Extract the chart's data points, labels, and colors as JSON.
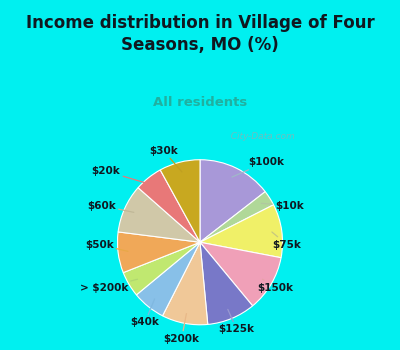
{
  "title": "Income distribution in Village of Four\nSeasons, MO (%)",
  "subtitle": "All residents",
  "labels": [
    "$100k",
    "$10k",
    "$75k",
    "$150k",
    "$125k",
    "$200k",
    "$40k",
    "> $200k",
    "$50k",
    "$60k",
    "$20k",
    "$30k"
  ],
  "values": [
    14.5,
    3.0,
    10.5,
    11.0,
    9.5,
    9.0,
    6.5,
    5.0,
    8.0,
    9.5,
    5.5,
    8.0
  ],
  "colors": [
    "#a898d8",
    "#b0d898",
    "#f0f068",
    "#f0a0b8",
    "#7878c8",
    "#f0c898",
    "#88c0e8",
    "#c0e870",
    "#f0a858",
    "#d0c8a8",
    "#e87878",
    "#c8a820"
  ],
  "title_color": "#101820",
  "subtitle_color": "#20b0a0",
  "outer_background": "#00f0f0",
  "chart_bg_color": "#d8f0e0",
  "watermark": "  City-Data.com"
}
